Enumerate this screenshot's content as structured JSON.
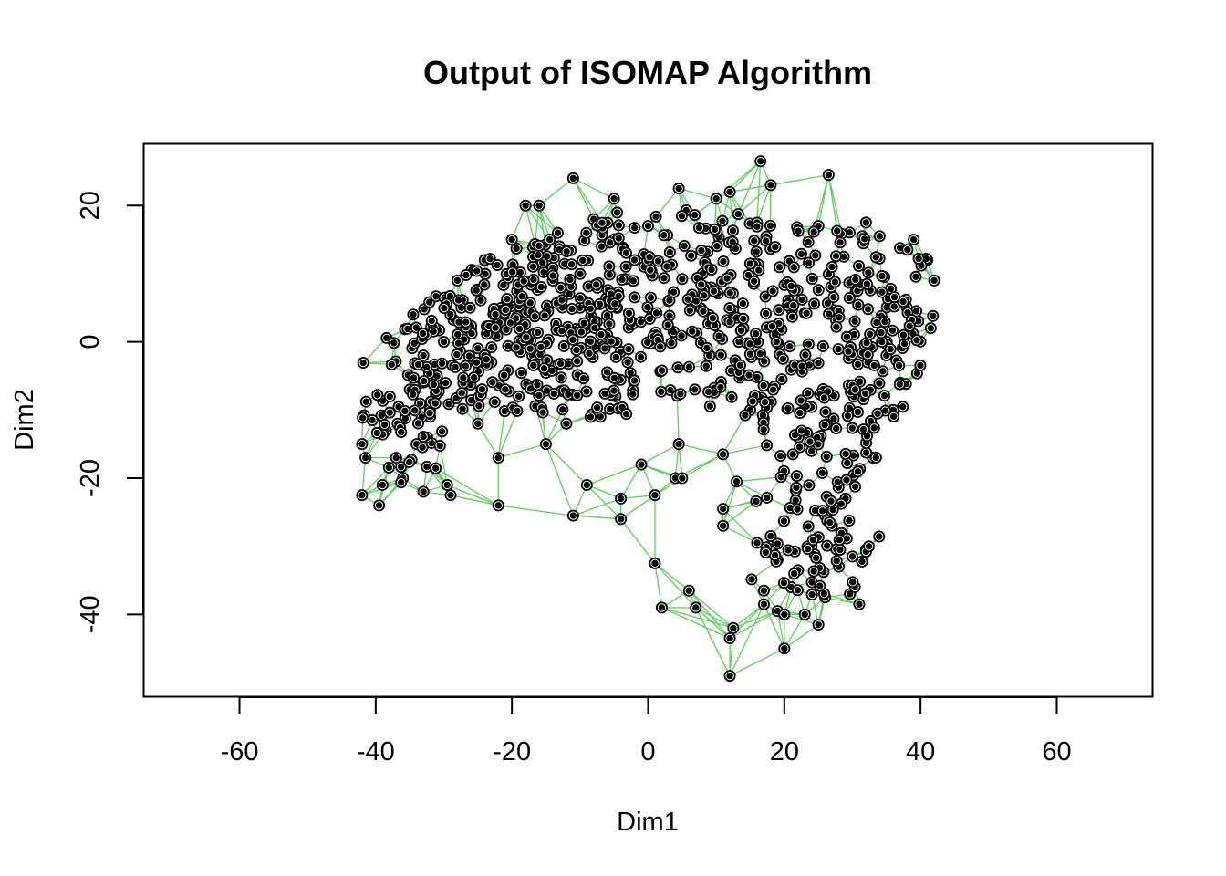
{
  "chart_data": {
    "type": "scatter",
    "title": "Output of ISOMAP Algorithm",
    "xlabel": "Dim1",
    "ylabel": "Dim2",
    "xlim": [
      -74,
      74
    ],
    "ylim": [
      -52,
      29
    ],
    "xticks": [
      -60,
      -40,
      -20,
      0,
      20,
      40,
      60
    ],
    "yticks": [
      -40,
      -20,
      0,
      20
    ],
    "edge_color": "#5ccf5a",
    "point_color": "#000000",
    "grid": false,
    "legend": "none",
    "points_dense_sample": [
      [
        -42,
        -15
      ],
      [
        -42,
        -22.5
      ],
      [
        -41.5,
        -17
      ],
      [
        -40.5,
        -11.5
      ],
      [
        -39.5,
        -24
      ],
      [
        -39,
        -21
      ],
      [
        -38.5,
        -13
      ],
      [
        -37,
        -17
      ],
      [
        -36,
        -20
      ],
      [
        -35,
        -7
      ],
      [
        -34,
        -15
      ],
      [
        -33,
        -2
      ],
      [
        -33,
        -22
      ],
      [
        -32,
        -11
      ],
      [
        -31,
        -5
      ],
      [
        -30,
        0
      ],
      [
        -29.5,
        -21
      ],
      [
        -29,
        -22.5
      ],
      [
        -28,
        9
      ],
      [
        -27,
        -6
      ],
      [
        -26,
        2
      ],
      [
        -25,
        -12
      ],
      [
        -24,
        12
      ],
      [
        -23,
        -3
      ],
      [
        -22,
        -17
      ],
      [
        -22,
        -24
      ],
      [
        -21,
        5
      ],
      [
        -20,
        15
      ],
      [
        -19,
        -8
      ],
      [
        -18,
        20
      ],
      [
        -17,
        -2
      ],
      [
        -16,
        20
      ],
      [
        -15,
        -15
      ],
      [
        -14,
        9
      ],
      [
        -13,
        14
      ],
      [
        -12,
        -12
      ],
      [
        -11,
        24
      ],
      [
        -11,
        -25.5
      ],
      [
        -10,
        5
      ],
      [
        -9,
        -21
      ],
      [
        -8,
        18
      ],
      [
        -7,
        -11
      ],
      [
        -6,
        1
      ],
      [
        -5,
        21
      ],
      [
        -4,
        -23
      ],
      [
        -4,
        -26
      ],
      [
        -3,
        -3
      ],
      [
        -2,
        12
      ],
      [
        -1,
        -18
      ],
      [
        0,
        17
      ],
      [
        1,
        -22.5
      ],
      [
        1,
        -32.5
      ],
      [
        2,
        -39
      ],
      [
        3,
        6
      ],
      [
        4,
        -20
      ],
      [
        4.5,
        -15
      ],
      [
        4.5,
        22.5
      ],
      [
        5,
        -20
      ],
      [
        6,
        -36.5
      ],
      [
        7,
        -39
      ],
      [
        8,
        10
      ],
      [
        9,
        -2
      ],
      [
        10,
        21
      ],
      [
        11,
        -24.5
      ],
      [
        11,
        -27
      ],
      [
        11,
        -16.5
      ],
      [
        12,
        -43.5
      ],
      [
        12,
        -49
      ],
      [
        12,
        22
      ],
      [
        12.5,
        -42
      ],
      [
        13,
        -20.5
      ],
      [
        14,
        2
      ],
      [
        15,
        -10
      ],
      [
        16,
        -29.5
      ],
      [
        16.5,
        26.5
      ],
      [
        17,
        -38.5
      ],
      [
        17,
        -36.5
      ],
      [
        18,
        23
      ],
      [
        18,
        -28.5
      ],
      [
        19,
        -32
      ],
      [
        19,
        -39.5
      ],
      [
        20,
        -45
      ],
      [
        20,
        -40
      ],
      [
        21,
        -36
      ],
      [
        22,
        -33.5
      ],
      [
        23,
        -40
      ],
      [
        24,
        -30
      ],
      [
        25,
        -41.5
      ],
      [
        25,
        17
      ],
      [
        26,
        -37.5
      ],
      [
        26.5,
        24.5
      ],
      [
        27,
        -27
      ],
      [
        28,
        -33
      ],
      [
        29,
        -23
      ],
      [
        30,
        -31.5
      ],
      [
        31,
        -38.5
      ],
      [
        32,
        -30.5
      ],
      [
        32,
        17.5
      ],
      [
        33,
        -17
      ],
      [
        34,
        15.5
      ],
      [
        35,
        -2
      ],
      [
        36,
        -10
      ],
      [
        37,
        -6
      ],
      [
        38,
        5
      ],
      [
        39,
        15
      ],
      [
        41,
        12
      ],
      [
        41.5,
        2
      ],
      [
        42,
        9
      ]
    ]
  }
}
